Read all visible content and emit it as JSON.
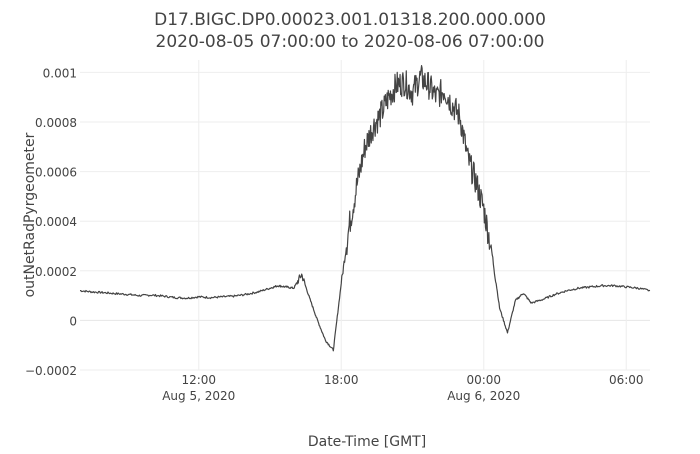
{
  "chart_data": {
    "type": "line",
    "title": "D17.BIGC.DP0.00023.001.01318.200.000.000",
    "subtitle": "2020-08-05 07:00:00 to 2020-08-06 07:00:00",
    "xlabel": "Date-Time [GMT]",
    "ylabel": "outNetRadPyrgeometer",
    "xlim": [
      "2020-08-05 07:00:00",
      "2020-08-06 07:00:00"
    ],
    "ylim": [
      -0.0002,
      0.00105
    ],
    "grid": true,
    "legend": "none",
    "line_color": "#444444",
    "x_ticks": [
      {
        "value": "2020-08-05 12:00",
        "label": "12:00",
        "date_label": "Aug 5, 2020"
      },
      {
        "value": "2020-08-05 18:00",
        "label": "18:00",
        "date_label": ""
      },
      {
        "value": "2020-08-06 00:00",
        "label": "00:00",
        "date_label": "Aug 6, 2020"
      },
      {
        "value": "2020-08-06 06:00",
        "label": "06:00",
        "date_label": ""
      }
    ],
    "y_ticks": [
      {
        "value": -0.0002,
        "label": "−0.0002"
      },
      {
        "value": 0,
        "label": "0"
      },
      {
        "value": 0.0002,
        "label": "0.0002"
      },
      {
        "value": 0.0004,
        "label": "0.0004"
      },
      {
        "value": 0.0006,
        "label": "0.0006"
      },
      {
        "value": 0.0008,
        "label": "0.0008"
      },
      {
        "value": 0.001,
        "label": "0.001"
      }
    ],
    "series": [
      {
        "x": [
          "2020-08-05 07:00",
          "2020-08-05 07:30",
          "2020-08-05 08:00",
          "2020-08-05 08:30",
          "2020-08-05 09:00",
          "2020-08-05 09:30",
          "2020-08-05 10:00",
          "2020-08-05 10:30",
          "2020-08-05 11:00",
          "2020-08-05 11:30",
          "2020-08-05 12:00",
          "2020-08-05 12:30",
          "2020-08-05 13:00",
          "2020-08-05 13:30",
          "2020-08-05 14:00",
          "2020-08-05 14:30",
          "2020-08-05 15:00",
          "2020-08-05 15:20",
          "2020-08-05 15:40",
          "2020-08-05 16:00",
          "2020-08-05 16:20",
          "2020-08-05 16:40",
          "2020-08-05 17:00",
          "2020-08-05 17:20",
          "2020-08-05 17:40",
          "2020-08-05 18:00",
          "2020-08-05 18:20",
          "2020-08-05 18:40",
          "2020-08-05 19:00",
          "2020-08-05 19:20",
          "2020-08-05 19:40",
          "2020-08-05 20:00",
          "2020-08-05 20:20",
          "2020-08-05 20:40",
          "2020-08-05 21:00",
          "2020-08-05 21:20",
          "2020-08-05 21:40",
          "2020-08-05 22:00",
          "2020-08-05 22:20",
          "2020-08-05 22:40",
          "2020-08-05 23:00",
          "2020-08-05 23:20",
          "2020-08-05 23:40",
          "2020-08-06 00:00",
          "2020-08-06 00:20",
          "2020-08-06 00:40",
          "2020-08-06 01:00",
          "2020-08-06 01:20",
          "2020-08-06 01:40",
          "2020-08-06 02:00",
          "2020-08-06 02:30",
          "2020-08-06 03:00",
          "2020-08-06 03:30",
          "2020-08-06 04:00",
          "2020-08-06 04:30",
          "2020-08-06 05:00",
          "2020-08-06 05:30",
          "2020-08-06 06:00",
          "2020-08-06 06:30",
          "2020-08-06 07:00"
        ],
        "y": [
          0.00012,
          0.000115,
          0.000112,
          0.000108,
          0.000105,
          0.0001,
          0.000102,
          9.8e-05,
          9.2e-05,
          9e-05,
          9.5e-05,
          9.2e-05,
          9.5e-05,
          9.8e-05,
          0.000105,
          0.000115,
          0.00013,
          0.00014,
          0.000135,
          0.00013,
          0.000185,
          9e-05,
          0.0,
          -8e-05,
          -0.00012,
          0.00015,
          0.00038,
          0.00055,
          0.0007,
          0.00078,
          0.00083,
          0.0009,
          0.00095,
          0.00096,
          0.00092,
          0.00098,
          0.00095,
          0.0009,
          0.00093,
          0.00087,
          0.00082,
          0.00065,
          0.00056,
          0.00045,
          0.00028,
          5e-05,
          -5e-05,
          8e-05,
          0.00011,
          7e-05,
          8.5e-05,
          0.000105,
          0.00012,
          0.00013,
          0.000135,
          0.00014,
          0.00014,
          0.000135,
          0.00013,
          0.00012
        ]
      }
    ]
  }
}
